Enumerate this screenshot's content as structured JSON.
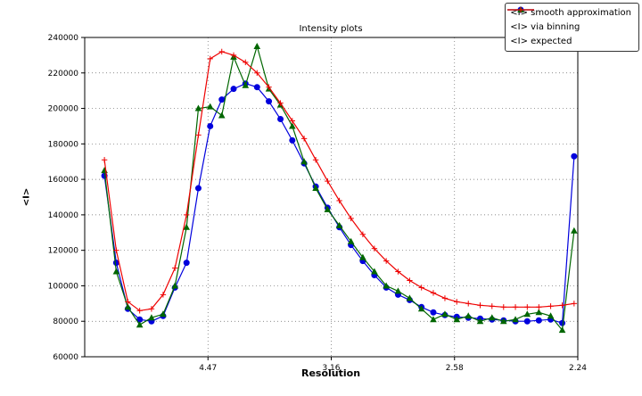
{
  "chart_data": {
    "type": "line",
    "title": "Intensity plots",
    "xlabel": "Resolution",
    "ylabel": "<I>",
    "grid": true,
    "legend_position": "top-right",
    "axis_note": "x axis is linear in 1/d^2; tick labels show resolution d in Angstrom",
    "xlim": [
      0,
      0.2
    ],
    "ylim": [
      60000,
      240000
    ],
    "xticks": [
      {
        "value": 0.05,
        "label": "4.47"
      },
      {
        "value": 0.1,
        "label": "3.16"
      },
      {
        "value": 0.15,
        "label": "2.58"
      },
      {
        "value": 0.2,
        "label": "2.24"
      }
    ],
    "yticks": [
      {
        "value": 60000,
        "label": "60000"
      },
      {
        "value": 80000,
        "label": "80000"
      },
      {
        "value": 100000,
        "label": "100000"
      },
      {
        "value": 120000,
        "label": "120000"
      },
      {
        "value": 140000,
        "label": "140000"
      },
      {
        "value": 160000,
        "label": "160000"
      },
      {
        "value": 180000,
        "label": "180000"
      },
      {
        "value": 200000,
        "label": "200000"
      },
      {
        "value": 220000,
        "label": "220000"
      },
      {
        "value": 240000,
        "label": "240000"
      }
    ],
    "x": [
      0.008,
      0.0128,
      0.0175,
      0.0223,
      0.0271,
      0.0318,
      0.0366,
      0.0413,
      0.0461,
      0.0509,
      0.0556,
      0.0604,
      0.0652,
      0.0699,
      0.0747,
      0.0794,
      0.0842,
      0.089,
      0.0937,
      0.0985,
      0.1033,
      0.108,
      0.1128,
      0.1175,
      0.1223,
      0.1271,
      0.1318,
      0.1366,
      0.1414,
      0.1461,
      0.1509,
      0.1556,
      0.1604,
      0.1652,
      0.1699,
      0.1747,
      0.1795,
      0.1842,
      0.189,
      0.1937,
      0.1985
    ],
    "series": [
      {
        "name": "<I> smooth approximation",
        "color": "#0000dd",
        "marker": "circle",
        "y": [
          162000,
          113000,
          87000,
          81000,
          80000,
          83000,
          99000,
          113000,
          155000,
          190000,
          205000,
          211000,
          214000,
          212000,
          204000,
          194000,
          182000,
          169000,
          156000,
          144000,
          133000,
          123000,
          114000,
          106000,
          99000,
          95000,
          92000,
          88000,
          85000,
          83500,
          82500,
          82000,
          81500,
          81000,
          80500,
          80000,
          80000,
          80500,
          81000,
          79000,
          173000
        ]
      },
      {
        "name": "<I> via binning",
        "color": "#006600",
        "marker": "triangle",
        "y": [
          165000,
          108000,
          88000,
          78000,
          82000,
          84000,
          100000,
          133000,
          200000,
          201000,
          196000,
          229000,
          213000,
          235000,
          211000,
          202000,
          190000,
          170000,
          155000,
          143000,
          134000,
          125000,
          116000,
          108000,
          100000,
          97000,
          93000,
          87000,
          81000,
          84000,
          81000,
          83000,
          80000,
          82000,
          80000,
          81000,
          84000,
          85000,
          83000,
          75000,
          131000
        ]
      },
      {
        "name": "<I> expected",
        "color": "#ee0000",
        "marker": "plus",
        "y": [
          171000,
          120000,
          91000,
          86000,
          87000,
          95000,
          110000,
          140000,
          185000,
          228000,
          232000,
          230000,
          226000,
          220000,
          212000,
          203000,
          193000,
          183000,
          171000,
          159000,
          148000,
          138000,
          129000,
          121000,
          114000,
          108000,
          103000,
          99000,
          96000,
          93000,
          91000,
          90000,
          89000,
          88500,
          88000,
          88000,
          88000,
          88000,
          88500,
          89000,
          90000
        ]
      }
    ]
  }
}
